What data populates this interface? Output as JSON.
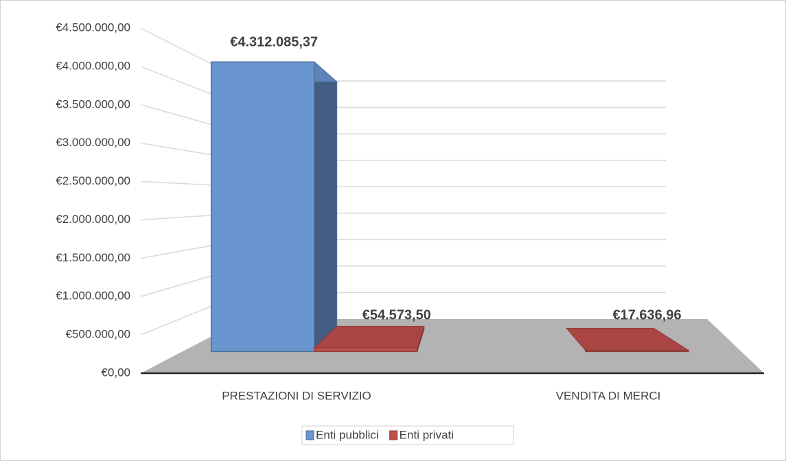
{
  "chart_data": {
    "type": "bar3d",
    "categories": [
      "PRESTAZIONI DI SERVIZIO",
      "VENDITA DI MERCI"
    ],
    "series": [
      {
        "name": "Enti pubblici",
        "color": "#6a96d0",
        "values": [
          4312085.37,
          null
        ],
        "value_labels": [
          "€4.312.085,37",
          null
        ]
      },
      {
        "name": "Enti privati",
        "color": "#c0504d",
        "values": [
          54573.5,
          17636.96
        ],
        "value_labels": [
          "€54.573,50",
          "€17.636,96"
        ]
      }
    ],
    "ylim": [
      0,
      4500000
    ],
    "yticks": [
      {
        "value": 0,
        "label": "€0,00"
      },
      {
        "value": 500000,
        "label": "€500.000,00"
      },
      {
        "value": 1000000,
        "label": "€1.000.000,00"
      },
      {
        "value": 1500000,
        "label": "€1.500.000,00"
      },
      {
        "value": 2000000,
        "label": "€2.000.000,00"
      },
      {
        "value": 2500000,
        "label": "€2.500.000,00"
      },
      {
        "value": 3000000,
        "label": "€3.000.000,00"
      },
      {
        "value": 3500000,
        "label": "€3.500.000,00"
      },
      {
        "value": 4000000,
        "label": "€4.000.000,00"
      },
      {
        "value": 4500000,
        "label": "€4.500.000,00"
      }
    ],
    "grid": true,
    "legend": "bottom"
  }
}
